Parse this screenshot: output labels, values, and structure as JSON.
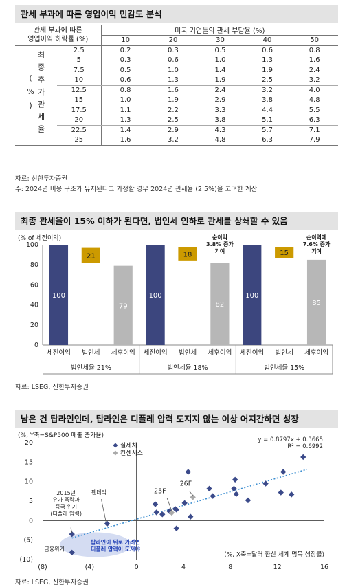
{
  "table_section": {
    "title": "관세 부과에 따른 영업이익 민감도 분석",
    "row_header": "관세 부과에 따른\n영업이익 하락률 (%)",
    "col_group_header": "미국 기업들의 관세 부담율 (%)",
    "col_values": [
      "10",
      "20",
      "30",
      "40",
      "50"
    ],
    "row_group_label": "최종 추가 관세율 (%)",
    "rows": [
      {
        "rate": "2.5",
        "vals": [
          "0.2",
          "0.3",
          "0.5",
          "0.6",
          "0.8"
        ]
      },
      {
        "rate": "5",
        "vals": [
          "0.3",
          "0.6",
          "1.0",
          "1.3",
          "1.6"
        ]
      },
      {
        "rate": "7.5",
        "vals": [
          "0.5",
          "1.0",
          "1.4",
          "1.9",
          "2.4"
        ]
      },
      {
        "rate": "10",
        "vals": [
          "0.6",
          "1.3",
          "1.9",
          "2.5",
          "3.2"
        ]
      },
      {
        "rate": "12.5",
        "vals": [
          "0.8",
          "1.6",
          "2.4",
          "3.2",
          "4.0"
        ]
      },
      {
        "rate": "15",
        "vals": [
          "1.0",
          "1.9",
          "2.9",
          "3.8",
          "4.8"
        ]
      },
      {
        "rate": "17.5",
        "vals": [
          "1.1",
          "2.2",
          "3.3",
          "4.4",
          "5.5"
        ]
      },
      {
        "rate": "20",
        "vals": [
          "1.3",
          "2.5",
          "3.8",
          "5.1",
          "6.3"
        ]
      },
      {
        "rate": "22.5",
        "vals": [
          "1.4",
          "2.9",
          "4.3",
          "5.7",
          "7.1"
        ]
      },
      {
        "rate": "25",
        "vals": [
          "1.6",
          "3.2",
          "4.8",
          "6.3",
          "7.9"
        ]
      }
    ],
    "source": "자료: 신한투자증권",
    "note": "주: 2024년 비용 구조가 유지된다고 가정할 경우 2024년 관세율 (2.5%)을 고려한 계산"
  },
  "bar_section": {
    "title": "최종 관세율이 15% 이하가 된다면, 법인세 인하로 관세를 상쇄할 수 있음",
    "source": "자료: LSEG, 신한투자증권"
  },
  "scatter_section": {
    "title": "남은 건 탑라인인데, 탑라인은 디플레 압력 도지지 않는 이상 어지간하면 성장",
    "source": "자료: LSEG, 신한투자증권"
  },
  "chart_data": [
    {
      "type": "bar",
      "ylabel": "(% of 세전이익)",
      "ylim": [
        0,
        100
      ],
      "yticks": [
        0,
        20,
        40,
        60,
        80,
        100
      ],
      "groups": [
        {
          "label": "법인세율 21%",
          "bars": [
            {
              "category": "세전이익",
              "value": 100,
              "color": "#3c467e",
              "kind": "full"
            },
            {
              "category": "법인세",
              "value": 21,
              "color": "#cc9a00",
              "kind": "floating",
              "top": 100
            },
            {
              "category": "세후이익",
              "value": 79,
              "color": "#b7b7b7",
              "kind": "full"
            }
          ]
        },
        {
          "label": "법인세율 18%",
          "bars": [
            {
              "category": "세전이익",
              "value": 100,
              "color": "#3c467e",
              "kind": "full"
            },
            {
              "category": "법인세",
              "value": 18,
              "color": "#cc9a00",
              "kind": "floating",
              "top": 100
            },
            {
              "category": "세후이익",
              "value": 82,
              "color": "#b7b7b7",
              "kind": "full"
            }
          ],
          "annotation": "순이익\n3.8% 증가\n기여"
        },
        {
          "label": "법인세율 15%",
          "bars": [
            {
              "category": "세전이익",
              "value": 100,
              "color": "#3c467e",
              "kind": "full"
            },
            {
              "category": "법인세",
              "value": 15,
              "color": "#cc9a00",
              "kind": "floating",
              "top": 100
            },
            {
              "category": "세후이익",
              "value": 85,
              "color": "#b7b7b7",
              "kind": "full"
            }
          ],
          "annotation": "순이익에\n7.6% 증가\n기여"
        }
      ]
    },
    {
      "type": "scatter",
      "ylabel": "(%, Y축=S&P500 매출 증가율)",
      "xlabel": "(%, X축=달러 환산 세계 명목 성장률)",
      "xlim": [
        -8,
        16
      ],
      "ylim": [
        -10,
        20
      ],
      "xticks": [
        "(8)",
        "(4)",
        "0",
        "4",
        "8",
        "12",
        "16"
      ],
      "yticks": [
        "20",
        "15",
        "10",
        "5",
        "0",
        "(5)",
        "(10)"
      ],
      "legend": [
        "실제치",
        "컨센서스"
      ],
      "regression": {
        "equation": "y = 0.8797x + 0.3665",
        "r2": "R² = 0.6992",
        "slope": 0.8797,
        "intercept": 0.3665
      },
      "series": [
        {
          "name": "실제치",
          "color": "#3b4a8a",
          "points": [
            [
              -5.5,
              -3.5
            ],
            [
              -5.5,
              -8.2
            ],
            [
              -2.5,
              -0.8
            ],
            [
              1.6,
              4.2
            ],
            [
              1.7,
              2.1
            ],
            [
              2.2,
              1.6
            ],
            [
              2.8,
              2.4
            ],
            [
              3.3,
              3.0
            ],
            [
              3.4,
              -2.0
            ],
            [
              4.1,
              4.5
            ],
            [
              4.4,
              12.5
            ],
            [
              4.6,
              1.0
            ],
            [
              6.2,
              8.2
            ],
            [
              6.5,
              6.3
            ],
            [
              8.3,
              8.2
            ],
            [
              8.4,
              10.5
            ],
            [
              8.5,
              6.8
            ],
            [
              9.5,
              5.2
            ],
            [
              11.0,
              9.5
            ],
            [
              12.3,
              7.2
            ],
            [
              12.5,
              12.5
            ],
            [
              13.2,
              6.7
            ],
            [
              14.2,
              16.3
            ],
            [
              3.4,
              2.8
            ]
          ]
        },
        {
          "name": "컨센서스",
          "color": "#a9a9a9",
          "points": [
            [
              3.0,
              2.0
            ],
            [
              4.8,
              6.0
            ]
          ]
        }
      ],
      "annotations": [
        {
          "text": "2015년\n유가 폭락과\n중국 위기\n(디플레 압력)"
        },
        {
          "text": "팬데믹"
        },
        {
          "text": "금융위기"
        },
        {
          "text": "25F"
        },
        {
          "text": "26F"
        },
        {
          "text": "탑라인이 뒤로 가려면\n디플레 압력이 도져야"
        }
      ]
    }
  ]
}
